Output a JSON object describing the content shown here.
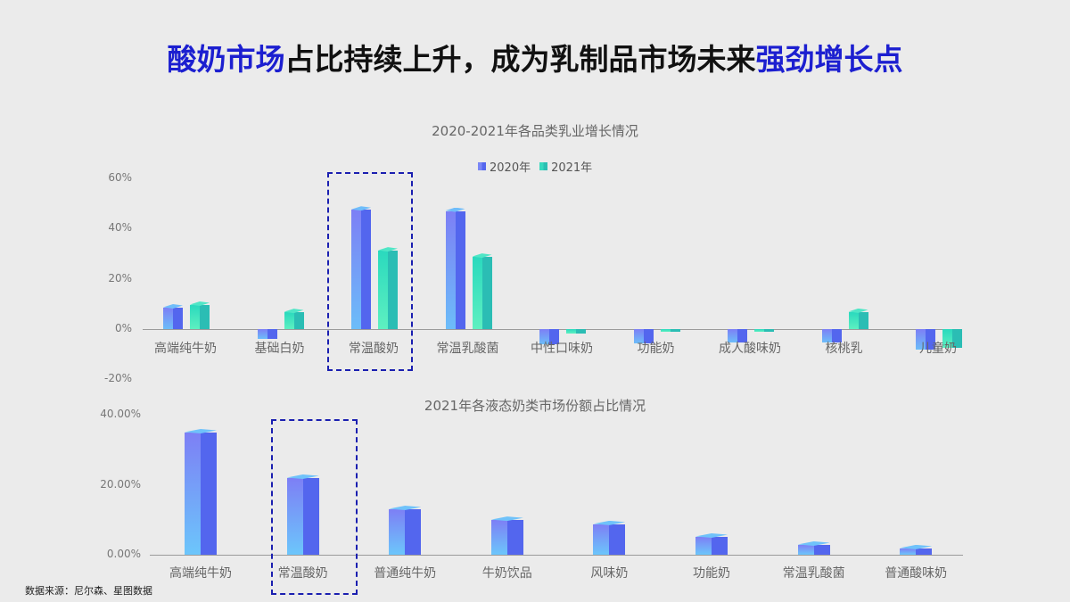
{
  "headline": {
    "part1": "酸奶市场",
    "part2": "占比持续上升，成为乳制品市场未来",
    "part3": "强劲增长点"
  },
  "colors": {
    "accent_blue": "#1c1fd0",
    "series_2020": "#5b6cf0",
    "series_2021": "#2dc8b4",
    "highlight_border": "#1a1fb0"
  },
  "source": "数据来源：尼尔森、星图数据",
  "chart_data": [
    {
      "type": "bar",
      "title": "2020-2021年各品类乳业增长情况",
      "xlabel": "",
      "ylabel": "",
      "ylim": [
        -20,
        60
      ],
      "yticks": [
        "60%",
        "40%",
        "20%",
        "0%",
        "-20%"
      ],
      "legend": [
        "2020年",
        "2021年"
      ],
      "legend_position": "top",
      "grid": false,
      "categories": [
        "高端纯牛奶",
        "基础白奶",
        "常温酸奶",
        "常温乳酸菌",
        "中性口味奶",
        "功能奶",
        "成人酸味奶",
        "核桃乳",
        "儿童奶"
      ],
      "series": [
        {
          "name": "2020年",
          "values": [
            8.5,
            -4.0,
            47.5,
            47.0,
            -6.0,
            -5.7,
            -5.5,
            -5.5,
            -8.0
          ]
        },
        {
          "name": "2021年",
          "values": [
            9.6,
            6.7,
            31.2,
            28.7,
            -1.8,
            -1.2,
            -1.2,
            6.8,
            -7.5
          ]
        }
      ],
      "highlighted_category": "常温酸奶"
    },
    {
      "type": "bar",
      "title": "2021年各液态奶类市场份额占比情况",
      "xlabel": "",
      "ylabel": "",
      "ylim": [
        0,
        40
      ],
      "yticks": [
        "40.00%",
        "20.00%",
        "0.00%"
      ],
      "grid": false,
      "categories": [
        "高端纯牛奶",
        "常温酸奶",
        "普通纯牛奶",
        "牛奶饮品",
        "风味奶",
        "功能奶",
        "常温乳酸菌",
        "普通酸味奶"
      ],
      "values": [
        34.9,
        21.9,
        13.0,
        9.9,
        8.7,
        5.1,
        2.8,
        1.8
      ],
      "highlighted_category": "常温酸奶"
    }
  ]
}
